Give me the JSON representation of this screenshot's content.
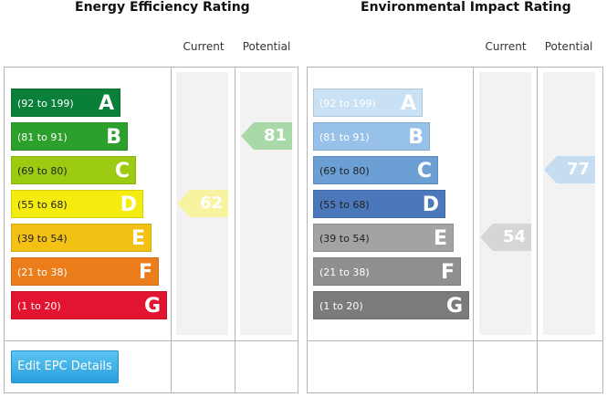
{
  "energy_panel": {
    "title": "Energy Efficiency Rating",
    "current_header": "Current",
    "potential_header": "Potential",
    "bands": [
      {
        "range": "(92 to 199)",
        "letter": "A",
        "color": "#0a7f3a",
        "text_color": "#ffffff"
      },
      {
        "range": "(81 to 91)",
        "letter": "B",
        "color": "#2ca02c",
        "text_color": "#ffffff"
      },
      {
        "range": "(69 to 80)",
        "letter": "C",
        "color": "#9ccb12",
        "text_color": "#222222"
      },
      {
        "range": "(55 to 68)",
        "letter": "D",
        "color": "#f4ec0f",
        "text_color": "#222222"
      },
      {
        "range": "(39 to 54)",
        "letter": "E",
        "color": "#f3c114",
        "text_color": "#222222"
      },
      {
        "range": "(21 to 38)",
        "letter": "F",
        "color": "#ec7d1b",
        "text_color": "#ffffff"
      },
      {
        "range": "(1 to 20)",
        "letter": "G",
        "color": "#e2142f",
        "text_color": "#ffffff"
      }
    ],
    "current": {
      "value": "62",
      "band": "D",
      "color": "#f7f3a0"
    },
    "potential": {
      "value": "81",
      "band": "B",
      "color": "#a9d8a9"
    }
  },
  "impact_panel": {
    "title": "Environmental Impact Rating",
    "current_header": "Current",
    "potential_header": "Potential",
    "bands": [
      {
        "range": "(92 to 199)",
        "letter": "A",
        "color": "#c9e1f4",
        "text_color": "#ffffff"
      },
      {
        "range": "(81 to 91)",
        "letter": "B",
        "color": "#97c1e8",
        "text_color": "#ffffff"
      },
      {
        "range": "(69 to 80)",
        "letter": "C",
        "color": "#6c9fd4",
        "text_color": "#222222"
      },
      {
        "range": "(55 to 68)",
        "letter": "D",
        "color": "#4a78bb",
        "text_color": "#222222"
      },
      {
        "range": "(39 to 54)",
        "letter": "E",
        "color": "#a3a3a3",
        "text_color": "#222222"
      },
      {
        "range": "(21 to 38)",
        "letter": "F",
        "color": "#8f8f8f",
        "text_color": "#ffffff"
      },
      {
        "range": "(1 to 20)",
        "letter": "G",
        "color": "#7b7b7b",
        "text_color": "#ffffff"
      }
    ],
    "current": {
      "value": "54",
      "band": "E",
      "color": "#d6d6d6"
    },
    "potential": {
      "value": "77",
      "band": "C",
      "color": "#c6dcf0"
    }
  },
  "edit_button": {
    "label": "Edit EPC Details"
  }
}
